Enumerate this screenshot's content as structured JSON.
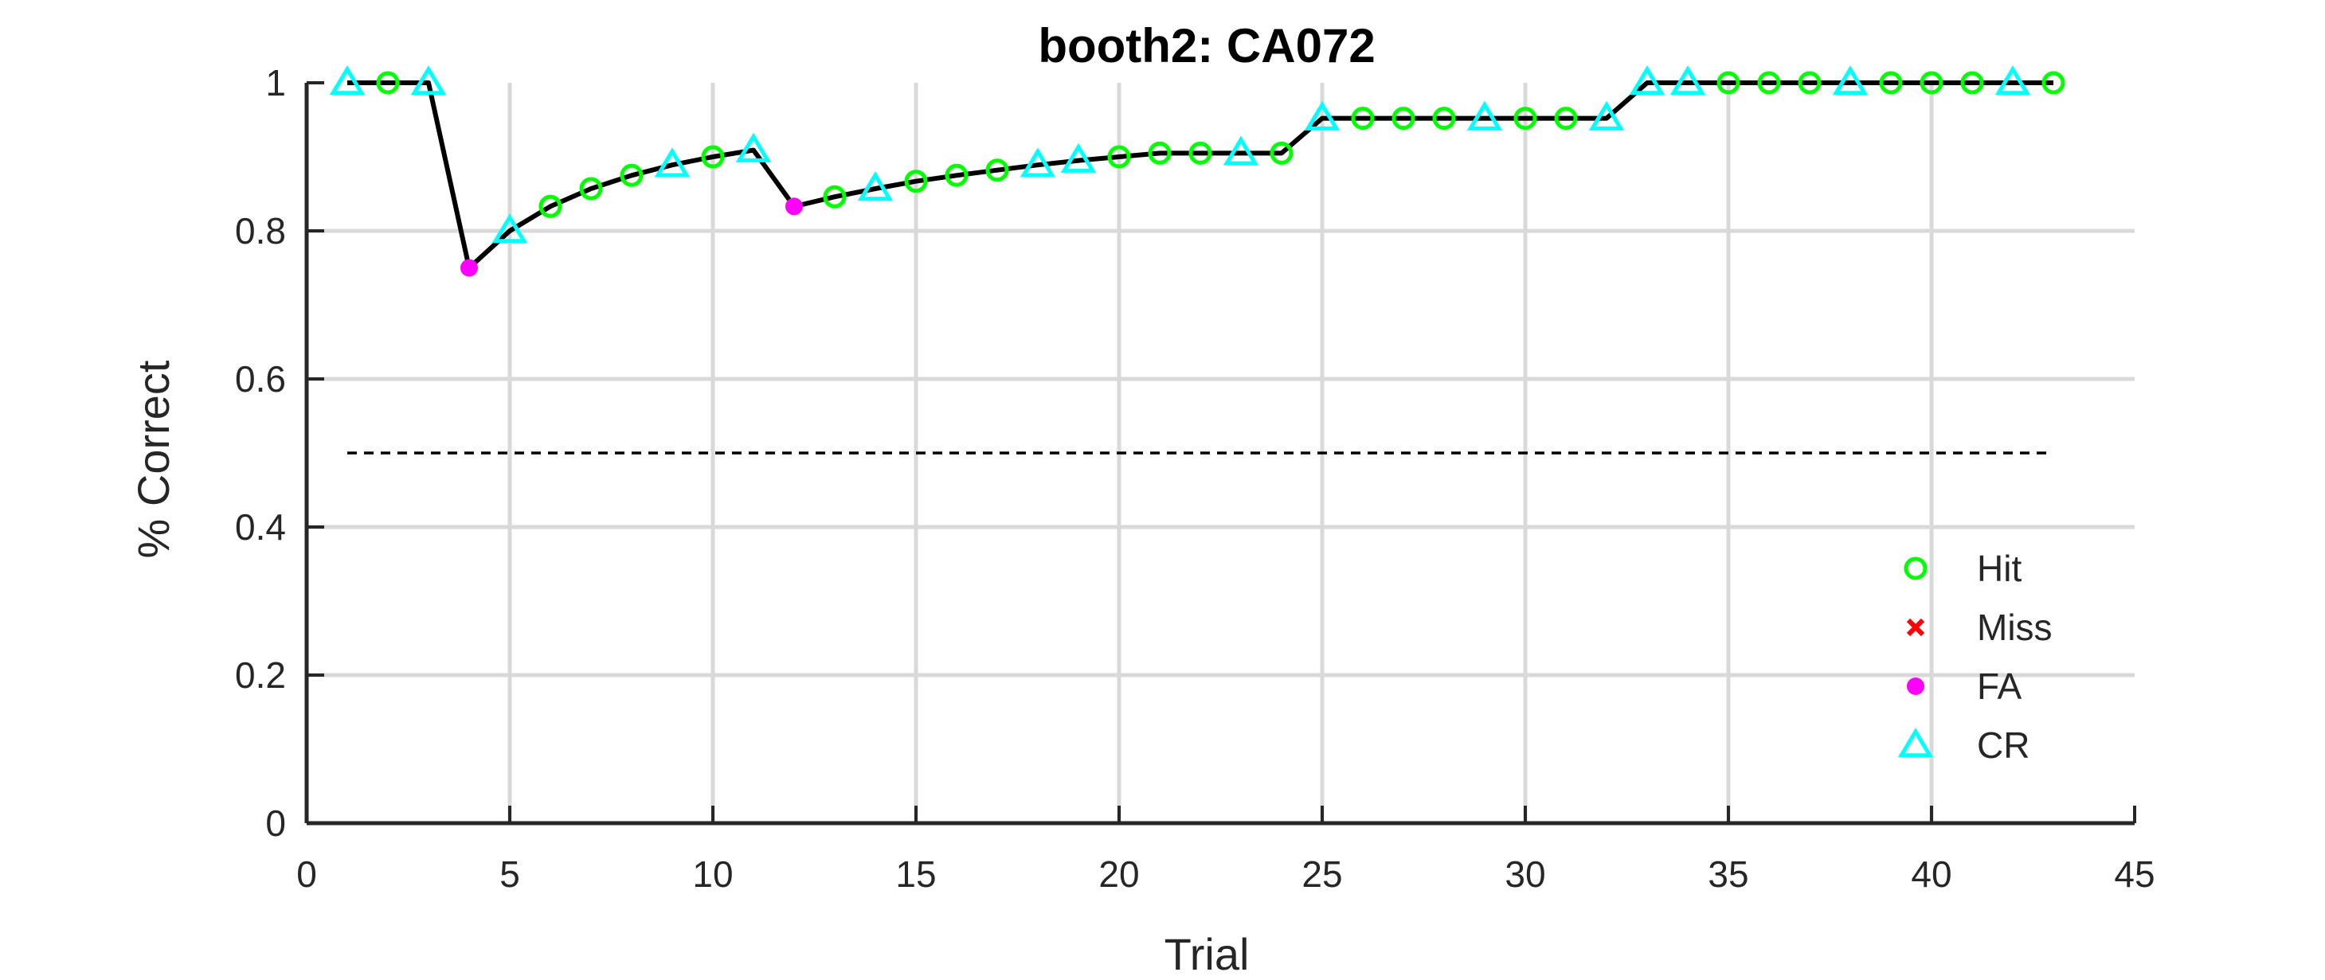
{
  "chart_data": {
    "type": "line",
    "title": "booth2: CA072",
    "xlabel": "Trial",
    "ylabel": "% Correct",
    "xlim": [
      0,
      45
    ],
    "ylim": [
      0,
      1
    ],
    "xticks": [
      0,
      5,
      10,
      15,
      20,
      25,
      30,
      35,
      40,
      45
    ],
    "xtick_labels": [
      "0",
      "5",
      "10",
      "15",
      "20",
      "25",
      "30",
      "35",
      "40",
      "45"
    ],
    "yticks": [
      0,
      0.2,
      0.4,
      0.6,
      0.8,
      1
    ],
    "ytick_labels": [
      "0",
      "0.2",
      "0.4",
      "0.6",
      "0.8",
      "1"
    ],
    "grid": true,
    "legend_position": "bottom-right",
    "chance_line": {
      "y": 0.5,
      "x_start": 1,
      "x_end": 43,
      "style": "dashed"
    },
    "series": [
      {
        "kind": "performance",
        "color": "#000000",
        "x": [
          1,
          2,
          3,
          4,
          5,
          6,
          7,
          8,
          9,
          10,
          11,
          12,
          13,
          14,
          15,
          16,
          17,
          18,
          19,
          20,
          21,
          22,
          23,
          24,
          25,
          26,
          27,
          28,
          29,
          30,
          31,
          32,
          33,
          34,
          35,
          36,
          37,
          38,
          39,
          40,
          41,
          42,
          43
        ],
        "y": [
          1,
          1,
          1,
          0.75,
          0.8,
          0.833,
          0.857,
          0.875,
          0.889,
          0.9,
          0.909,
          0.833,
          0.846,
          0.857,
          0.867,
          0.875,
          0.882,
          0.889,
          0.895,
          0.9,
          0.905,
          0.905,
          0.905,
          0.905,
          0.952,
          0.952,
          0.952,
          0.952,
          0.952,
          0.952,
          0.952,
          0.952,
          1,
          1,
          1,
          1,
          1,
          1,
          1,
          1,
          1,
          1,
          1
        ]
      },
      {
        "name": "Hit",
        "marker": "circle-open",
        "color": "#00ff00",
        "x": [
          2,
          6,
          7,
          8,
          10,
          13,
          15,
          16,
          17,
          20,
          21,
          22,
          24,
          26,
          27,
          28,
          30,
          31,
          35,
          36,
          37,
          39,
          40,
          41,
          43
        ]
      },
      {
        "name": "Miss",
        "marker": "x",
        "color": "#ff0000",
        "x": []
      },
      {
        "name": "FA",
        "marker": "dot",
        "color": "#ff00ff",
        "x": [
          4,
          12
        ]
      },
      {
        "name": "CR",
        "marker": "triangle-open",
        "color": "#00ffff",
        "x": [
          1,
          3,
          5,
          9,
          11,
          14,
          18,
          19,
          23,
          25,
          29,
          32,
          33,
          34,
          38,
          42
        ]
      }
    ]
  }
}
